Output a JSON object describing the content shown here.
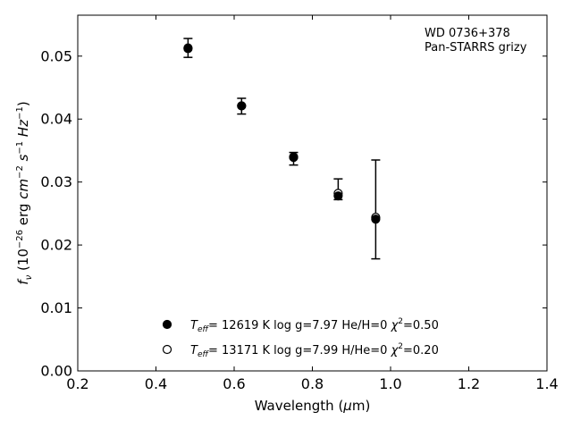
{
  "chart_data": {
    "type": "scatter",
    "title": "",
    "annotation": [
      "WD 0736+378",
      "Pan-STARRS grizy"
    ],
    "xlabel": {
      "prefix": "Wavelength (",
      "mu": "μ",
      "suffix": "m)"
    },
    "ylabel": {
      "f": "f",
      "nu": "ν",
      "rest": " (10",
      "e1": "−26",
      "unit": " erg ",
      "cm": "cm",
      "e2": "−2",
      "s": " s",
      "e3": "−1",
      "hz": " Hz",
      "e4": "−1",
      "close": ")"
    },
    "xlim": [
      0.2,
      1.4
    ],
    "ylim": [
      0.0,
      0.0565
    ],
    "xticks": [
      "0.2",
      "0.4",
      "0.6",
      "0.8",
      "1.0",
      "1.2",
      "1.4"
    ],
    "yticks": [
      "0.00",
      "0.01",
      "0.02",
      "0.03",
      "0.04",
      "0.05"
    ],
    "observed": {
      "x": [
        0.482,
        0.619,
        0.752,
        0.866,
        0.962
      ],
      "y": [
        0.0513,
        0.0421,
        0.0339,
        0.0276,
        0.024
      ],
      "err_low": [
        0.0498,
        0.0408,
        0.0327,
        0.0272,
        0.0178
      ],
      "err_high": [
        0.0528,
        0.0433,
        0.0347,
        0.0305,
        0.0335
      ]
    },
    "series": [
      {
        "marker": "filled",
        "x": [
          0.482,
          0.619,
          0.752,
          0.866,
          0.962
        ],
        "y": [
          0.0513,
          0.0421,
          0.034,
          0.0278,
          0.0241
        ],
        "legend": {
          "t": "T",
          "sub": "eff",
          "text": "= 12619 K  log g=7.97  He/H=0  ",
          "chi": "χ",
          "sup": "2",
          "chi_val": "=0.50"
        }
      },
      {
        "marker": "open",
        "x": [
          0.482,
          0.619,
          0.752,
          0.866,
          0.962
        ],
        "y": [
          0.0512,
          0.0421,
          0.0339,
          0.0282,
          0.0244
        ],
        "legend": {
          "t": "T",
          "sub": "eff",
          "text": "= 13171 K  log g=7.99  H/He=0  ",
          "chi": "χ",
          "sup": "2",
          "chi_val": "=0.20"
        }
      }
    ],
    "grid": false,
    "legend_position": "lower-center"
  }
}
